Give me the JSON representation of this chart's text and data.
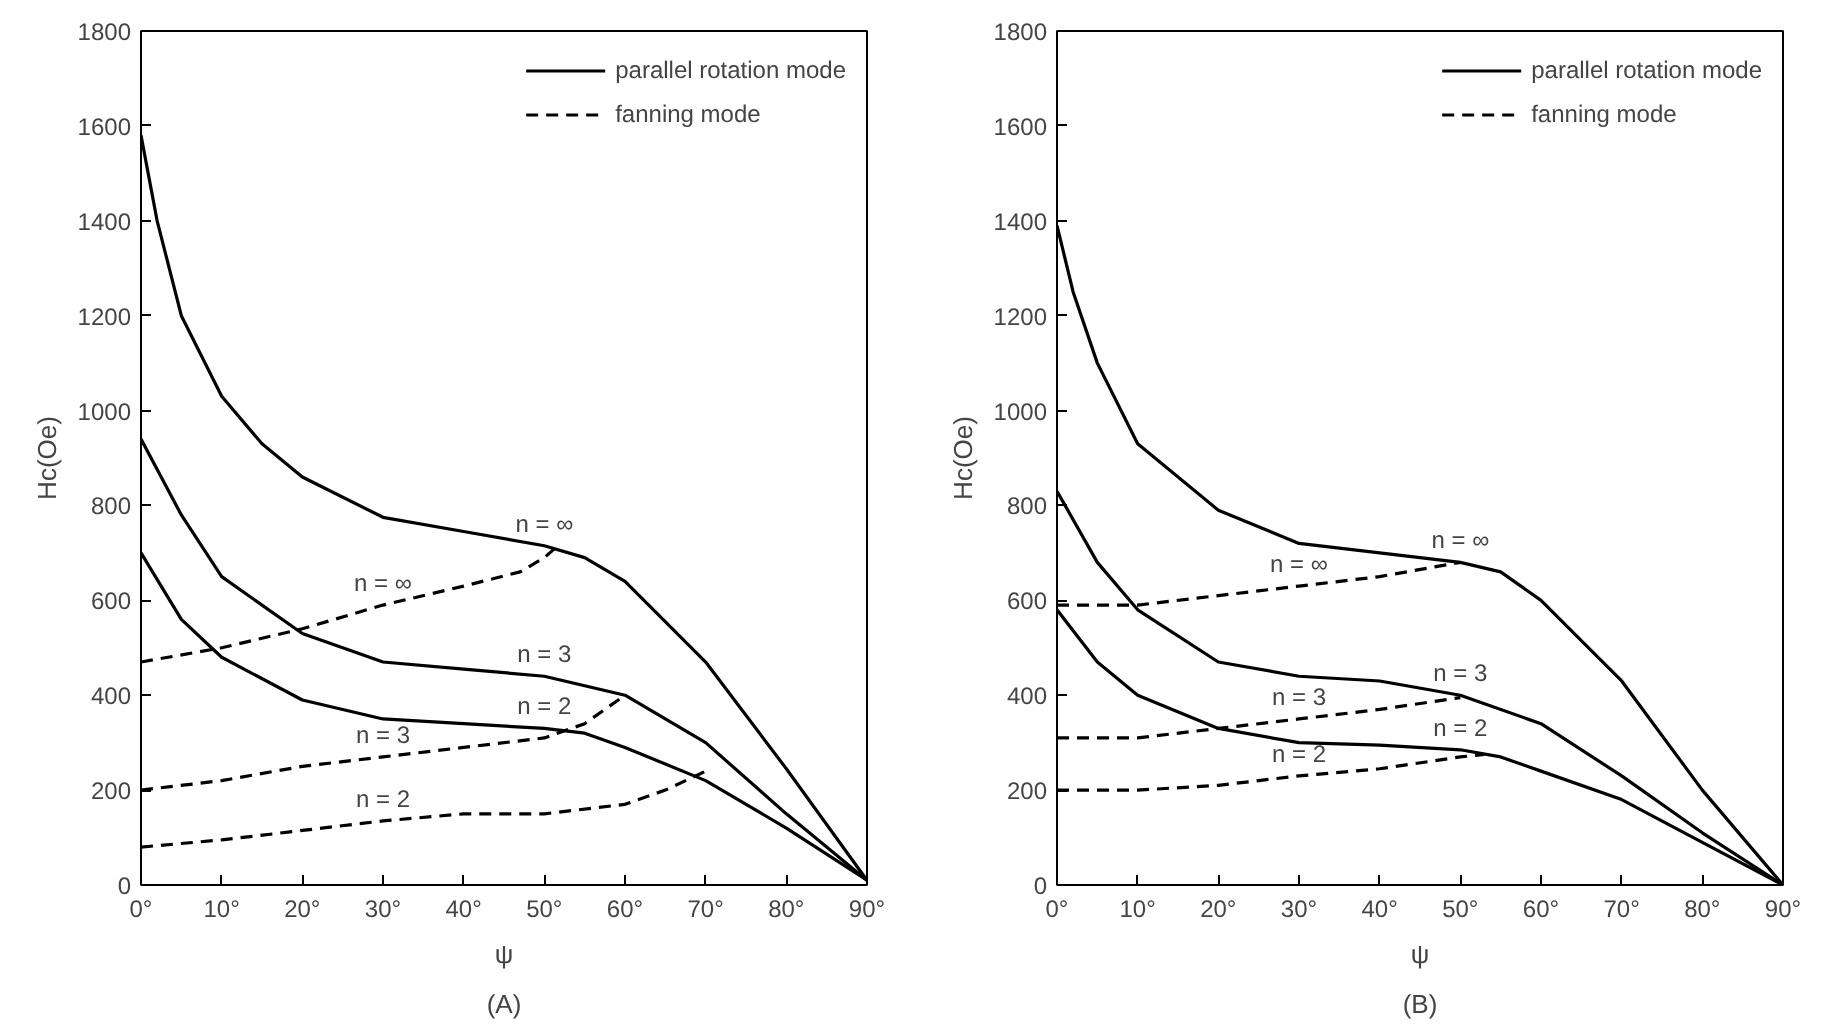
{
  "chart_data": [
    {
      "type": "line",
      "title": "(A)",
      "xlabel": "ψ",
      "ylabel": "Hc(Oe)",
      "xlim": [
        0,
        90
      ],
      "ylim": [
        0,
        1800
      ],
      "xticks": [
        {
          "value": 0,
          "label": "0°"
        },
        {
          "value": 10,
          "label": "10°"
        },
        {
          "value": 20,
          "label": "20°"
        },
        {
          "value": 30,
          "label": "30°"
        },
        {
          "value": 40,
          "label": "40°"
        },
        {
          "value": 50,
          "label": "50°"
        },
        {
          "value": 60,
          "label": "60°"
        },
        {
          "value": 70,
          "label": "70°"
        },
        {
          "value": 80,
          "label": "80°"
        },
        {
          "value": 90,
          "label": "90°"
        }
      ],
      "yticks": [
        0,
        200,
        400,
        600,
        800,
        1000,
        1200,
        1400,
        1600,
        1800
      ],
      "grid": false,
      "legend": "top right",
      "annotations": [
        "n = ∞",
        "n = 3",
        "n = 2",
        "n = ∞",
        "n = 3",
        "n = 2"
      ],
      "series": [
        {
          "name": "parallel rotation mode",
          "color": "#000000",
          "line_style": "solid",
          "x": [
            0,
            2,
            5,
            10,
            15,
            20,
            30,
            40,
            50,
            55,
            60,
            70,
            80,
            90
          ],
          "values": [
            1580,
            1400,
            1200,
            1030,
            930,
            860,
            775,
            745,
            715,
            690,
            640,
            470,
            245,
            10
          ]
        },
        {
          "color": "#000000",
          "line_style": "solid",
          "x": [
            0,
            5,
            10,
            20,
            30,
            40,
            50,
            60,
            70,
            80,
            90
          ],
          "values": [
            940,
            780,
            650,
            530,
            470,
            455,
            440,
            400,
            300,
            150,
            10
          ]
        },
        {
          "color": "#000000",
          "line_style": "solid",
          "x": [
            0,
            5,
            10,
            20,
            30,
            40,
            50,
            55,
            60,
            70,
            80,
            90
          ],
          "values": [
            700,
            560,
            480,
            390,
            350,
            340,
            330,
            320,
            290,
            220,
            120,
            10
          ]
        },
        {
          "name": "fanning mode",
          "color": "#000000",
          "line_style": "dashed",
          "x": [
            0,
            10,
            20,
            30,
            40,
            47,
            50,
            52
          ],
          "values": [
            470,
            500,
            540,
            590,
            630,
            660,
            690,
            720
          ]
        },
        {
          "color": "#000000",
          "line_style": "dashed",
          "x": [
            0,
            10,
            20,
            30,
            40,
            50,
            55,
            60
          ],
          "values": [
            200,
            220,
            250,
            270,
            290,
            310,
            340,
            400
          ]
        },
        {
          "color": "#000000",
          "line_style": "dashed",
          "x": [
            0,
            10,
            20,
            30,
            40,
            50,
            60,
            65,
            70
          ],
          "values": [
            80,
            95,
            115,
            135,
            150,
            150,
            170,
            200,
            240
          ]
        }
      ]
    },
    {
      "type": "line",
      "title": "(B)",
      "xlabel": "ψ",
      "ylabel": "Hc(Oe)",
      "xlim": [
        0,
        90
      ],
      "ylim": [
        0,
        1800
      ],
      "xticks": [
        {
          "value": 0,
          "label": "0°"
        },
        {
          "value": 10,
          "label": "10°"
        },
        {
          "value": 20,
          "label": "20°"
        },
        {
          "value": 30,
          "label": "30°"
        },
        {
          "value": 40,
          "label": "40°"
        },
        {
          "value": 50,
          "label": "50°"
        },
        {
          "value": 60,
          "label": "60°"
        },
        {
          "value": 70,
          "label": "70°"
        },
        {
          "value": 80,
          "label": "80°"
        },
        {
          "value": 90,
          "label": "90°"
        }
      ],
      "yticks": [
        0,
        200,
        400,
        600,
        800,
        1000,
        1200,
        1400,
        1600,
        1800
      ],
      "grid": false,
      "legend": "top right",
      "annotations": [
        "n = ∞",
        "n = 3",
        "n = 2",
        "n = ∞",
        "n = 3",
        "n = 2"
      ],
      "series": [
        {
          "name": "parallel rotation mode",
          "color": "#000000",
          "line_style": "solid",
          "x": [
            0,
            2,
            5,
            10,
            20,
            30,
            40,
            50,
            55,
            60,
            70,
            80,
            90
          ],
          "values": [
            1390,
            1250,
            1100,
            930,
            790,
            720,
            700,
            680,
            660,
            600,
            430,
            200,
            0
          ]
        },
        {
          "color": "#000000",
          "line_style": "solid",
          "x": [
            0,
            5,
            10,
            20,
            30,
            40,
            50,
            60,
            70,
            80,
            90
          ],
          "values": [
            830,
            680,
            580,
            470,
            440,
            430,
            400,
            340,
            230,
            110,
            0
          ]
        },
        {
          "color": "#000000",
          "line_style": "solid",
          "x": [
            0,
            5,
            10,
            20,
            30,
            40,
            50,
            55,
            60,
            70,
            80,
            90
          ],
          "values": [
            580,
            470,
            400,
            330,
            300,
            295,
            285,
            270,
            240,
            180,
            90,
            0
          ]
        },
        {
          "name": "fanning mode",
          "color": "#000000",
          "line_style": "dashed",
          "x": [
            0,
            10,
            20,
            30,
            40,
            50
          ],
          "values": [
            590,
            590,
            610,
            630,
            650,
            680
          ]
        },
        {
          "color": "#000000",
          "line_style": "dashed",
          "x": [
            0,
            10,
            20,
            30,
            40,
            50
          ],
          "values": [
            310,
            310,
            330,
            350,
            370,
            395
          ]
        },
        {
          "color": "#000000",
          "line_style": "dashed",
          "x": [
            0,
            10,
            20,
            30,
            40,
            50,
            53
          ],
          "values": [
            200,
            200,
            210,
            230,
            245,
            270,
            275
          ]
        }
      ]
    }
  ]
}
